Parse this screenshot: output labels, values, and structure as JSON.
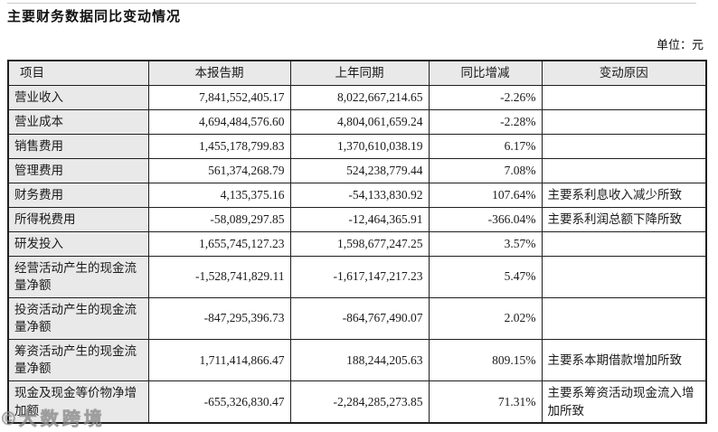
{
  "page": {
    "title": "主要财务数据同比变动情况",
    "unit_label": "单位：元",
    "watermark_logo": "©",
    "watermark_text": "大数跨境"
  },
  "colors": {
    "header_and_item_bg": "#e9e9e9",
    "border": "#1f1f1f",
    "text": "#1a1a1a"
  },
  "table": {
    "headers": [
      "项目",
      "本报告期",
      "上年同期",
      "同比增减",
      "变动原因"
    ],
    "rows": [
      {
        "item": "营业收入",
        "current": "7,841,552,405.17",
        "prior": "8,022,667,214.65",
        "change": "-2.26%",
        "reason": ""
      },
      {
        "item": "营业成本",
        "current": "4,694,484,576.60",
        "prior": "4,804,061,659.24",
        "change": "-2.28%",
        "reason": ""
      },
      {
        "item": "销售费用",
        "current": "1,455,178,799.83",
        "prior": "1,370,610,038.19",
        "change": "6.17%",
        "reason": ""
      },
      {
        "item": "管理费用",
        "current": "561,374,268.79",
        "prior": "524,238,779.44",
        "change": "7.08%",
        "reason": ""
      },
      {
        "item": "财务费用",
        "current": "4,135,375.16",
        "prior": "-54,133,830.92",
        "change": "107.64%",
        "reason": "主要系利息收入减少所致"
      },
      {
        "item": "所得税费用",
        "current": "-58,089,297.85",
        "prior": "-12,464,365.91",
        "change": "-366.04%",
        "reason": "主要系利润总额下降所致"
      },
      {
        "item": "研发投入",
        "current": "1,655,745,127.23",
        "prior": "1,598,677,247.25",
        "change": "3.57%",
        "reason": ""
      },
      {
        "item": "经营活动产生的现金流量净额",
        "current": "-1,528,741,829.11",
        "prior": "-1,617,147,217.23",
        "change": "5.47%",
        "reason": ""
      },
      {
        "item": "投资活动产生的现金流量净额",
        "current": "-847,295,396.73",
        "prior": "-864,767,490.07",
        "change": "2.02%",
        "reason": ""
      },
      {
        "item": "筹资活动产生的现金流量净额",
        "current": "1,711,414,866.47",
        "prior": "188,244,205.63",
        "change": "809.15%",
        "reason": "主要系本期借款增加所致"
      },
      {
        "item": "现金及现金等价物净增加额",
        "current": "-655,326,830.47",
        "prior": "-2,284,285,273.85",
        "change": "71.31%",
        "reason": "主要系筹资活动现金流入增加所致"
      }
    ]
  }
}
